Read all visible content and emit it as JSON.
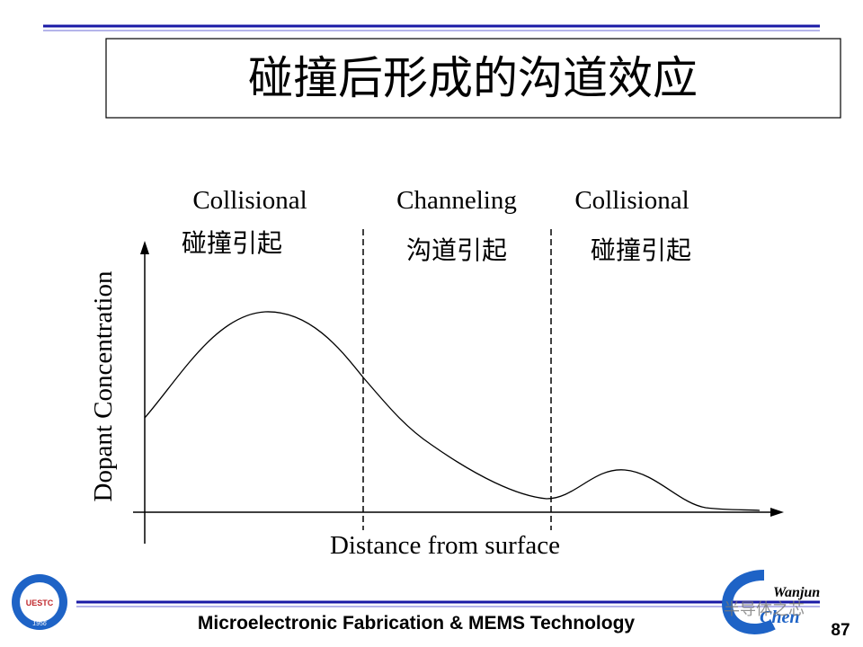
{
  "header": {
    "title": "碰撞后形成的沟道效应"
  },
  "regions": [
    {
      "label": "Collisional",
      "label_cn": "碰撞引起"
    },
    {
      "label": "Channeling",
      "label_cn": "沟道引起"
    },
    {
      "label": "Collisional",
      "label_cn": "碰撞引起"
    }
  ],
  "axes": {
    "y_label": "Dopant Concentration",
    "x_label": "Distance from surface"
  },
  "footer": {
    "text": "Microelectronic Fabrication & MEMS Technology",
    "page": "87",
    "logo_left": {
      "name": "UESTC",
      "year": "1956"
    },
    "logo_right": {
      "line1": "Wanjun",
      "line2": "Chen"
    },
    "watermark": "半导体之芯"
  }
}
